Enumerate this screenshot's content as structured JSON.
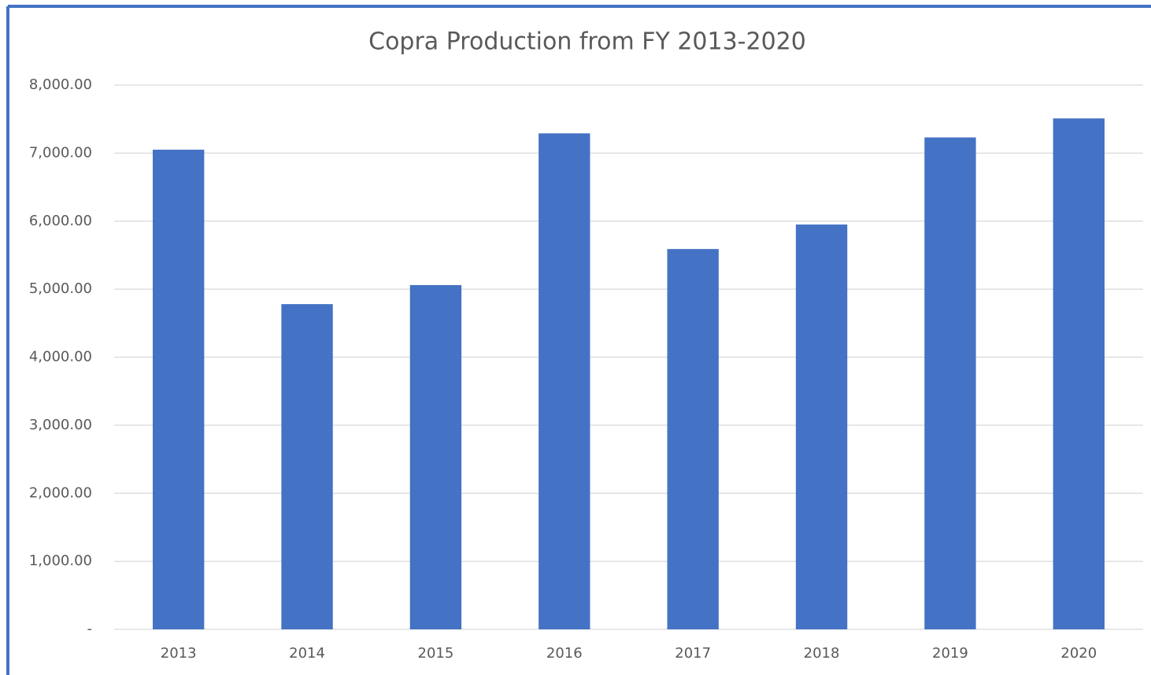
{
  "chart_data": {
    "type": "bar",
    "title": "Copra Production from FY 2013-2020",
    "categories": [
      "2013",
      "2014",
      "2015",
      "2016",
      "2017",
      "2018",
      "2019",
      "2020"
    ],
    "values": [
      7050,
      4780,
      5060,
      7290,
      5590,
      5950,
      7230,
      7510
    ],
    "color": "#4472c4",
    "ylim": [
      0,
      8000
    ],
    "yticks": [
      {
        "value": 0,
        "label": "-"
      },
      {
        "value": 1000,
        "label": "1,000.00"
      },
      {
        "value": 2000,
        "label": "2,000.00"
      },
      {
        "value": 3000,
        "label": "3,000.00"
      },
      {
        "value": 4000,
        "label": "4,000.00"
      },
      {
        "value": 5000,
        "label": "5,000.00"
      },
      {
        "value": 6000,
        "label": "6,000.00"
      },
      {
        "value": 7000,
        "label": "7,000.00"
      },
      {
        "value": 8000,
        "label": "8,000.00"
      }
    ],
    "grid": true
  }
}
